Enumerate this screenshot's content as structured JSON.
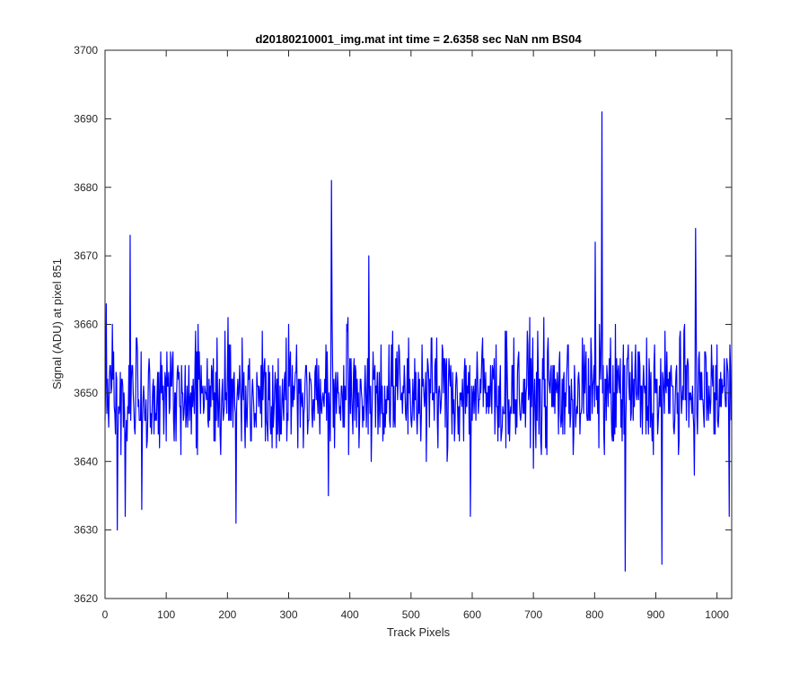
{
  "chart_data": {
    "type": "line",
    "title": "d20180210001_img.mat int time = 2.6358 sec  NaN nm BS04",
    "xlabel": "Track Pixels",
    "ylabel": "Signal (ADU) at pixel 851",
    "xlim": [
      0,
      1024
    ],
    "ylim": [
      3620,
      3700
    ],
    "xticks": [
      0,
      100,
      200,
      300,
      400,
      500,
      600,
      700,
      800,
      900,
      1000
    ],
    "yticks": [
      3620,
      3630,
      3640,
      3650,
      3660,
      3670,
      3680,
      3690,
      3700
    ],
    "grid": false,
    "box": true,
    "series": [
      {
        "color": "#0000ff",
        "baseline": 3650,
        "noise_amplitude": 8,
        "point_count": 1024,
        "notable_points": [
          {
            "x": 2,
            "y": 3663
          },
          {
            "x": 20,
            "y": 3630
          },
          {
            "x": 33,
            "y": 3632
          },
          {
            "x": 41,
            "y": 3673
          },
          {
            "x": 60,
            "y": 3633
          },
          {
            "x": 214,
            "y": 3631
          },
          {
            "x": 365,
            "y": 3635
          },
          {
            "x": 370,
            "y": 3681
          },
          {
            "x": 431,
            "y": 3670
          },
          {
            "x": 597,
            "y": 3632
          },
          {
            "x": 801,
            "y": 3672
          },
          {
            "x": 812,
            "y": 3691
          },
          {
            "x": 850,
            "y": 3624
          },
          {
            "x": 910,
            "y": 3625
          },
          {
            "x": 965,
            "y": 3674
          },
          {
            "x": 1020,
            "y": 3632
          }
        ]
      }
    ]
  }
}
